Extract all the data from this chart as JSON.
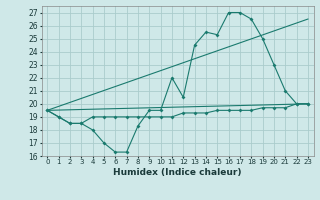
{
  "xlabel": "Humidex (Indice chaleur)",
  "xlim": [
    -0.5,
    23.5
  ],
  "ylim": [
    16,
    27.5
  ],
  "yticks": [
    16,
    17,
    18,
    19,
    20,
    21,
    22,
    23,
    24,
    25,
    26,
    27
  ],
  "xticks": [
    0,
    1,
    2,
    3,
    4,
    5,
    6,
    7,
    8,
    9,
    10,
    11,
    12,
    13,
    14,
    15,
    16,
    17,
    18,
    19,
    20,
    21,
    22,
    23
  ],
  "background_color": "#cfe8e8",
  "grid_color": "#aacccc",
  "line_color": "#1a7a6e",
  "series": [
    {
      "x": [
        0,
        1,
        2,
        3,
        4,
        5,
        6,
        7,
        8,
        9,
        10,
        11,
        12,
        13,
        14,
        15,
        16,
        17,
        18,
        19,
        20,
        21,
        22,
        23
      ],
      "y": [
        19.5,
        19.0,
        18.5,
        18.5,
        18.0,
        17.0,
        16.3,
        16.3,
        18.3,
        19.5,
        19.5,
        22.0,
        20.5,
        24.5,
        25.5,
        25.3,
        27.0,
        27.0,
        26.5,
        25.0,
        23.0,
        21.0,
        20.0,
        20.0
      ],
      "markers": true
    },
    {
      "x": [
        0,
        1,
        2,
        3,
        4,
        5,
        6,
        7,
        8,
        9,
        10,
        11,
        12,
        13,
        14,
        15,
        16,
        17,
        18,
        19,
        20,
        21,
        22,
        23
      ],
      "y": [
        19.5,
        19.0,
        18.5,
        18.5,
        19.0,
        19.0,
        19.0,
        19.0,
        19.0,
        19.0,
        19.0,
        19.0,
        19.3,
        19.3,
        19.3,
        19.5,
        19.5,
        19.5,
        19.5,
        19.7,
        19.7,
        19.7,
        20.0,
        20.0
      ],
      "markers": true
    },
    {
      "x": [
        0,
        23
      ],
      "y": [
        19.5,
        20.0
      ],
      "markers": false
    },
    {
      "x": [
        0,
        23
      ],
      "y": [
        19.5,
        26.5
      ],
      "markers": false
    }
  ]
}
